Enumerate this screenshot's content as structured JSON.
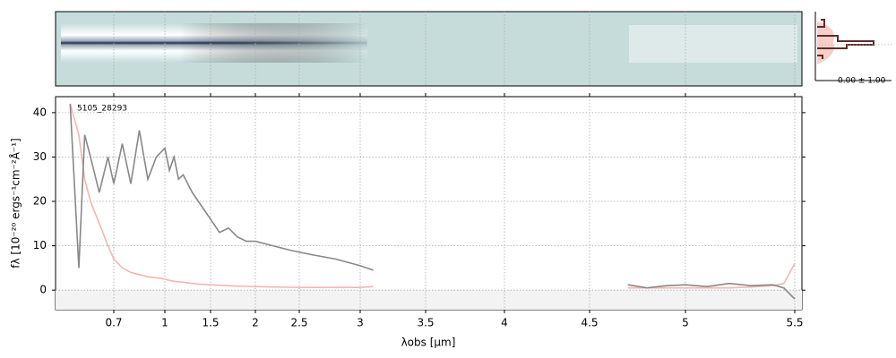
{
  "chart_data": {
    "type": "line",
    "annotation": "5105_28293",
    "ylabel": "fλ [10⁻²⁰ ergs⁻¹cm⁻²Å⁻¹]",
    "xlabel": "λobs [μm]",
    "inset_label": "0.00 ± 1.00",
    "x": [
      0.55,
      0.58,
      0.6,
      0.62,
      0.65,
      0.68,
      0.7,
      0.75,
      0.8,
      0.85,
      0.9,
      0.95,
      1.0,
      1.05,
      1.1,
      1.15,
      1.2,
      1.3,
      1.4,
      1.5,
      1.6,
      1.7,
      1.8,
      1.9,
      2.0,
      2.2,
      2.4,
      2.6,
      2.8,
      3.0,
      3.1,
      4.0,
      4.7,
      4.8,
      4.9,
      5.0,
      5.1,
      5.2,
      5.3,
      5.4,
      5.45,
      5.5
    ],
    "series": [
      {
        "color": "#888888",
        "values": [
          42,
          5,
          35,
          30,
          22,
          30,
          24,
          33,
          24,
          36,
          25,
          30,
          32,
          27,
          30,
          25,
          26,
          22,
          19,
          16,
          13,
          14,
          12,
          11,
          11,
          10,
          9,
          8,
          7,
          5.5,
          4.5,
          null,
          1.2,
          0.5,
          1,
          1.2,
          0.8,
          1.5,
          1,
          1.2,
          0.5,
          -2
        ]
      },
      {
        "color": "#f4b6b0",
        "values": [
          42,
          35,
          25,
          20,
          15,
          10,
          7,
          5,
          4,
          3.5,
          3,
          2.8,
          2.5,
          2.2,
          2,
          1.9,
          1.8,
          1.5,
          1.3,
          1.2,
          1.1,
          1,
          0.9,
          0.85,
          0.8,
          0.7,
          0.65,
          0.6,
          0.6,
          0.6,
          0.8,
          null,
          0.5,
          0.5,
          0.5,
          0.5,
          0.5,
          0.5,
          0.7,
          1,
          1.5,
          6
        ]
      }
    ],
    "xlim": [
      0.5,
      5.52
    ],
    "xticks": [
      0.7,
      1.0,
      1.5,
      2.0,
      2.5,
      3.0,
      3.5,
      4.0,
      4.5,
      5.0,
      5.5
    ],
    "ylim": [
      -4.4,
      43.6
    ],
    "yticks": [
      0,
      10,
      20,
      30,
      40
    ],
    "grid": true
  }
}
